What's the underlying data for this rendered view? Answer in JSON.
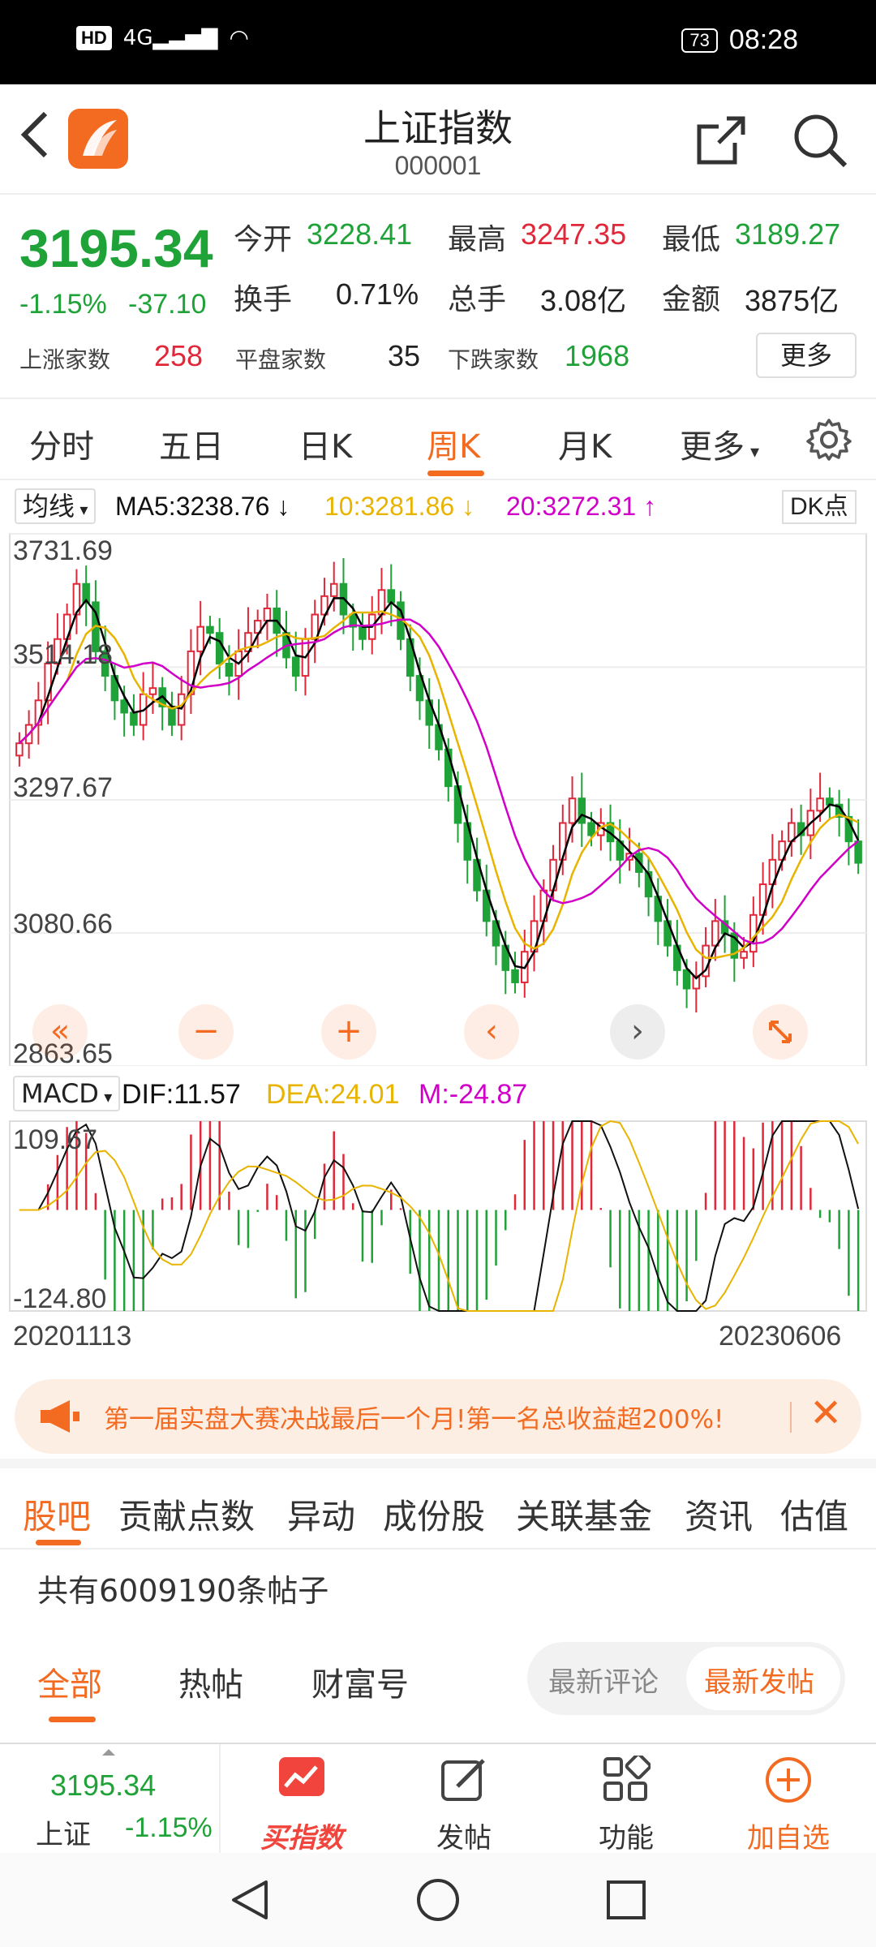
{
  "status_bar": {
    "hd": "HD",
    "network": "4G",
    "battery": "73",
    "time": "08:28"
  },
  "header": {
    "title": "上证指数",
    "code": "000001"
  },
  "quote": {
    "price": "3195.34",
    "change_pct": "-1.15%",
    "change": "-37.10",
    "open_label": "今开",
    "open": "3228.41",
    "high_label": "最高",
    "high": "3247.35",
    "low_label": "最低",
    "low": "3189.27",
    "turnover_label": "换手",
    "turnover": "0.71%",
    "volume_label": "总手",
    "volume": "3.08亿",
    "amount_label": "金额",
    "amount": "3875亿",
    "up_label": "上涨家数",
    "up": "258",
    "flat_label": "平盘家数",
    "flat": "35",
    "down_label": "下跌家数",
    "down": "1968",
    "more_label": "更多"
  },
  "chart_tabs": [
    "分时",
    "五日",
    "日K",
    "周K",
    "月K",
    "更多"
  ],
  "ma_bar": {
    "selector": "均线",
    "ma5": "MA5:3238.76",
    "ma10": "10:3281.86",
    "ma20": "20:3272.31",
    "dk": "DK点"
  },
  "kline_axis": [
    "3731.69",
    "3514.18",
    "3297.67",
    "3080.66",
    "2863.65"
  ],
  "macd_bar": {
    "selector": "MACD",
    "dif": "DIF:11.57",
    "dea": "DEA:24.01",
    "m": "M:-24.87"
  },
  "macd_axis": [
    "109.67",
    "-124.80"
  ],
  "dates": {
    "start": "20201113",
    "end": "20230606"
  },
  "controls": [
    "«",
    "−",
    "+",
    "‹",
    "›"
  ],
  "colors": {
    "accent": "#f36a21",
    "up": "#e0283a",
    "down": "#1fa338",
    "ma5": "#000000",
    "ma10": "#e8b400",
    "ma20": "#d000c8"
  },
  "banner": {
    "text": "第一届实盘大赛决战最后一个月!第一名总收益超200%!"
  },
  "sub_tabs": [
    "股吧",
    "贡献点数",
    "异动",
    "成份股",
    "关联基金",
    "资讯",
    "估值"
  ],
  "post_count": "共有6009190条帖子",
  "filters": [
    "全部",
    "热帖",
    "财富号"
  ],
  "sort_options": [
    "最新评论",
    "最新发帖"
  ],
  "bottom_bar": {
    "mini_price": "3195.34",
    "mini_name": "上证",
    "mini_change": "-1.15%",
    "items": [
      "买指数",
      "发帖",
      "功能",
      "加自选"
    ]
  },
  "chart_data": {
    "type": "candlestick",
    "x_range": [
      "20201113",
      "20230606"
    ],
    "y_range": [
      2863.65,
      3731.69
    ],
    "y_ticks": [
      3731.69,
      3514.18,
      3297.67,
      3080.66,
      2863.65
    ],
    "macd_range": [
      -124.8,
      109.67
    ],
    "indicators": {
      "MA5": 3238.76,
      "MA10": 3281.86,
      "MA20": 3272.31,
      "DIF": 11.57,
      "DEA": 24.01,
      "M": -24.87
    },
    "close_series": [
      3390,
      3420,
      3460,
      3520,
      3560,
      3600,
      3650,
      3620,
      3540,
      3500,
      3460,
      3440,
      3420,
      3470,
      3480,
      3450,
      3420,
      3470,
      3540,
      3580,
      3570,
      3520,
      3500,
      3540,
      3570,
      3590,
      3610,
      3570,
      3530,
      3500,
      3560,
      3600,
      3630,
      3650,
      3600,
      3580,
      3560,
      3600,
      3640,
      3620,
      3560,
      3500,
      3460,
      3420,
      3380,
      3320,
      3260,
      3200,
      3150,
      3100,
      3060,
      3020,
      3000,
      3050,
      3100,
      3150,
      3200,
      3260,
      3300,
      3260,
      3240,
      3260,
      3230,
      3200,
      3210,
      3180,
      3140,
      3100,
      3060,
      3020,
      2990,
      3010,
      3060,
      3100,
      3080,
      3040,
      3050,
      3110,
      3160,
      3200,
      3230,
      3260,
      3240,
      3280,
      3300,
      3290,
      3270,
      3230,
      3195
    ]
  }
}
